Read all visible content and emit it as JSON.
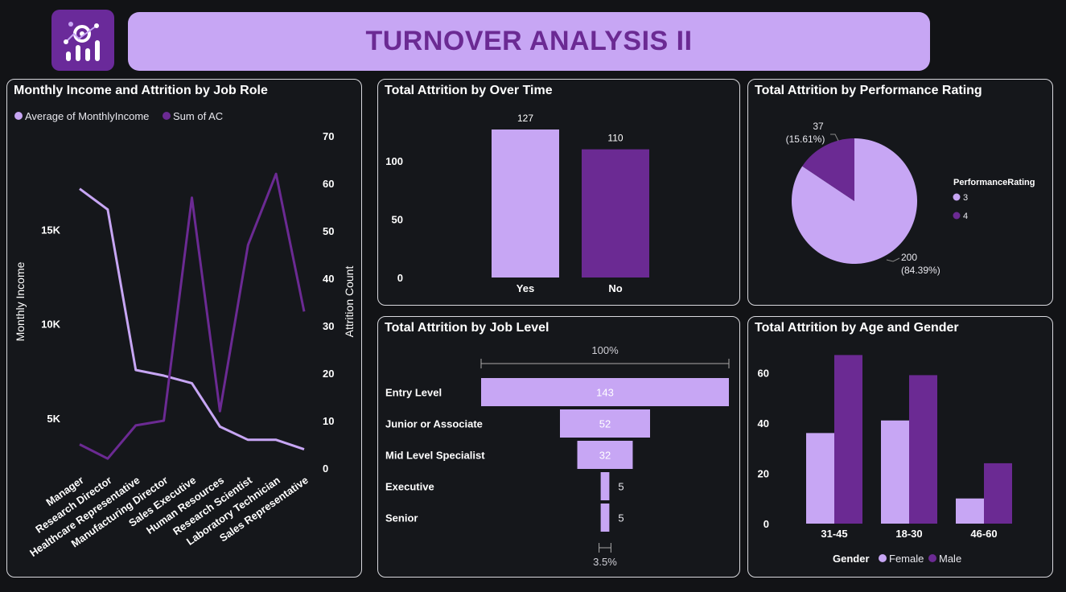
{
  "page": {
    "title": "TURNOVER ANALYSIS II",
    "logo_icon": "analytics-gear-icon",
    "colors": {
      "light_purple": "#c7a6f4",
      "dark_purple": "#6b2a93",
      "background": "#121316"
    }
  },
  "panels": {
    "income": {
      "title": "Monthly Income and Attrition by Job Role",
      "legend": [
        "Average of MonthlyIncome",
        "Sum of AC"
      ],
      "y_left_label": "Monthly Income",
      "y_right_label": "Attrition Count",
      "y_left_ticks": [
        "15K",
        "10K",
        "5K"
      ],
      "y_right_ticks": [
        "70",
        "60",
        "50",
        "40",
        "30",
        "20",
        "10",
        "0"
      ]
    },
    "overtime": {
      "title": "Total Attrition by Over Time",
      "y_ticks": [
        "100",
        "50",
        "0"
      ]
    },
    "performance": {
      "title": "Total Attrition by Performance Rating",
      "legend_title": "PerformanceRating"
    },
    "joblevel": {
      "title": "Total Attrition by Job Level",
      "top_pct": "100%",
      "bottom_pct": "3.5%"
    },
    "agegender": {
      "title": "Total Attrition by Age and Gender",
      "legend_title": "Gender",
      "y_ticks": [
        "60",
        "40",
        "20",
        "0"
      ]
    }
  },
  "chart_data": [
    {
      "type": "line",
      "title": "Monthly Income and Attrition by Job Role",
      "categories": [
        "Manager",
        "Research Director",
        "Healthcare Representative",
        "Manufacturing Director",
        "Sales Executive",
        "Human Resources",
        "Research Scientist",
        "Laboratory Technician",
        "Sales Representative"
      ],
      "series": [
        {
          "name": "Average of MonthlyIncome",
          "axis": "left",
          "values": [
            17200,
            16100,
            7600,
            7300,
            6900,
            4600,
            3900,
            3900,
            3400
          ]
        },
        {
          "name": "Sum of AC",
          "axis": "right",
          "values": [
            5,
            2,
            9,
            10,
            57,
            12,
            47,
            62,
            33
          ]
        }
      ],
      "ylabel": "Monthly Income",
      "y2label": "Attrition Count",
      "ylim": [
        2400,
        20000
      ],
      "y2lim": [
        0,
        70
      ]
    },
    {
      "type": "bar",
      "title": "Total Attrition by Over Time",
      "categories": [
        "Yes",
        "No"
      ],
      "values": [
        127,
        110
      ],
      "ylim": [
        0,
        127
      ]
    },
    {
      "type": "pie",
      "title": "Total Attrition by Performance Rating",
      "labels": [
        "3",
        "4"
      ],
      "values": [
        200,
        37
      ],
      "percent_labels": [
        "(84.39%)",
        "(15.61%)"
      ]
    },
    {
      "type": "bar",
      "title": "Total Attrition by Job Level",
      "categories": [
        "Entry Level",
        "Junior or Associate",
        "Mid Level Specialist",
        "Executive",
        "Senior"
      ],
      "values": [
        143,
        52,
        32,
        5,
        5
      ]
    },
    {
      "type": "bar",
      "title": "Total Attrition by Age and Gender",
      "categories": [
        "31-45",
        "18-30",
        "46-60"
      ],
      "series": [
        {
          "name": "Female",
          "values": [
            36,
            41,
            10
          ]
        },
        {
          "name": "Male",
          "values": [
            67,
            59,
            24
          ]
        }
      ],
      "ylim": [
        0,
        70
      ]
    }
  ]
}
